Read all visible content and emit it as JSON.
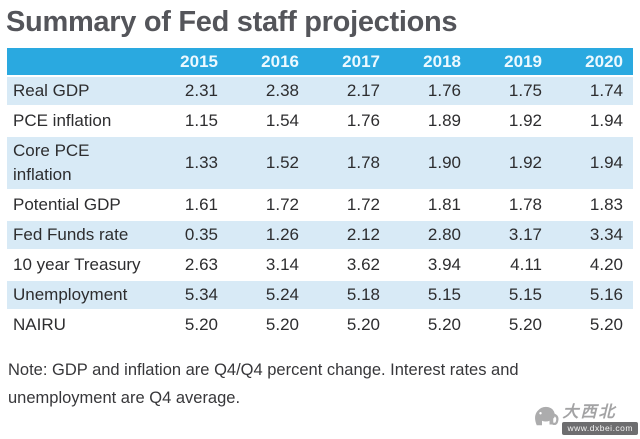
{
  "title": "Summary of Fed staff projections",
  "chart_data": {
    "type": "table",
    "title": "Summary of Fed staff projections",
    "columns": [
      "2015",
      "2016",
      "2017",
      "2018",
      "2019",
      "2020"
    ],
    "rows": [
      {
        "label": "Real GDP",
        "values": [
          "2.31",
          "2.38",
          "2.17",
          "1.76",
          "1.75",
          "1.74"
        ]
      },
      {
        "label": "PCE inflation",
        "values": [
          "1.15",
          "1.54",
          "1.76",
          "1.89",
          "1.92",
          "1.94"
        ]
      },
      {
        "label": "Core PCE inflation",
        "values": [
          "1.33",
          "1.52",
          "1.78",
          "1.90",
          "1.92",
          "1.94"
        ]
      },
      {
        "label": "Potential GDP",
        "values": [
          "1.61",
          "1.72",
          "1.72",
          "1.81",
          "1.78",
          "1.83"
        ]
      },
      {
        "label": "Fed Funds rate",
        "values": [
          "0.35",
          "1.26",
          "2.12",
          "2.80",
          "3.17",
          "3.34"
        ]
      },
      {
        "label": "10 year Treasury",
        "values": [
          "2.63",
          "3.14",
          "3.62",
          "3.94",
          "4.11",
          "4.20"
        ]
      },
      {
        "label": "Unemployment",
        "values": [
          "5.34",
          "5.24",
          "5.18",
          "5.15",
          "5.15",
          "5.16"
        ]
      },
      {
        "label": "NAIRU",
        "values": [
          "5.20",
          "5.20",
          "5.20",
          "5.20",
          "5.20",
          "5.20"
        ]
      }
    ],
    "note": "Note: GDP and inflation are Q4/Q4 percent change. Interest rates and unemployment are Q4 average."
  },
  "watermark": {
    "site_name_cn": "大西北",
    "site_url": "www.dxbei.com"
  },
  "colors": {
    "header-bg": "#2aa9e0",
    "stripe-bg": "#d8eaf6",
    "title-color": "#54555a",
    "text-color": "#2d2d2f",
    "note-color": "#37373a"
  }
}
